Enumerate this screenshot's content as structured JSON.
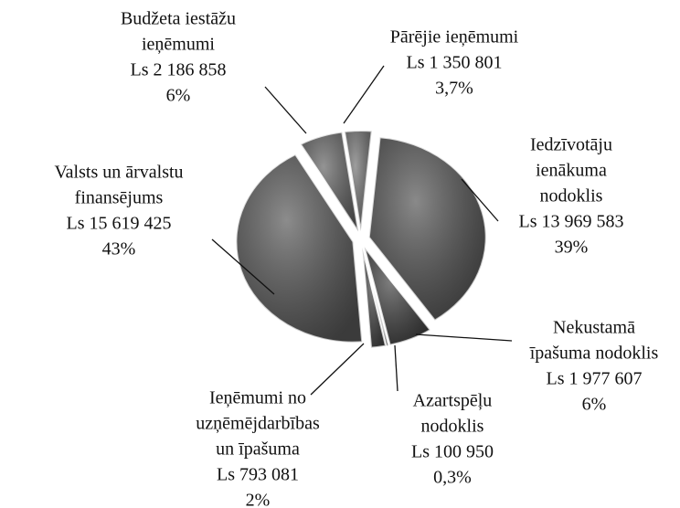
{
  "chart_data": {
    "type": "pie",
    "categories": [
      [
        "Pārējie ieņēmumi"
      ],
      [
        "Iedzīvotāju",
        "ienākuma",
        "nodoklis"
      ],
      [
        "Nekustamā",
        "īpašuma nodoklis"
      ],
      [
        "Azartspēļu",
        "nodoklis"
      ],
      [
        "Ieņēmumi no",
        "uzņēmējdarbības",
        "un īpašuma"
      ],
      [
        "Valsts un ārvalstu",
        "finansējums"
      ],
      [
        "Budžeta iestāžu",
        "ieņēmumi"
      ]
    ],
    "amount_labels": [
      "Ls 1 350 801",
      "Ls 13 969 583",
      "Ls 1 977 607",
      "Ls 100 950",
      "Ls 793 081",
      "Ls 15 619 425",
      "Ls 2 186 858"
    ],
    "values": [
      3.7,
      39,
      6,
      0.3,
      2,
      43,
      6
    ],
    "value_labels": [
      "3,7%",
      "39%",
      "6%",
      "0,3%",
      "2%",
      "43%",
      "6%"
    ],
    "colors": [
      "#6a6a6a",
      "#4a4a4a",
      "#3a3a3a",
      "#2a2a2a",
      "#3e3e3e",
      "#4e4e4e",
      "#5a5a5a"
    ]
  }
}
